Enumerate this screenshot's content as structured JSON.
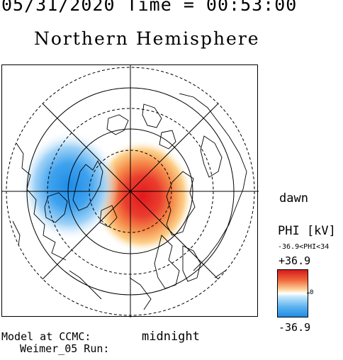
{
  "header": {
    "timestamp": "05/31/2020 Time = 00:53:00"
  },
  "title": "Northern Hemisphere",
  "map": {
    "direction_labels": {
      "right": "dawn",
      "bottom": "midnight"
    },
    "field": "PHI",
    "colors": {
      "positive": "#e8262a",
      "negative": "#1e8ce6"
    }
  },
  "model_info": {
    "line1": "Model at CCMC:",
    "line2": "Weimer_05 Run:"
  },
  "colorbar": {
    "title": "PHI [kV]",
    "range_text": "-36.9<PHI<34",
    "max_label": "+36.9",
    "min_label": "-36.9",
    "zero_label": "0"
  }
}
